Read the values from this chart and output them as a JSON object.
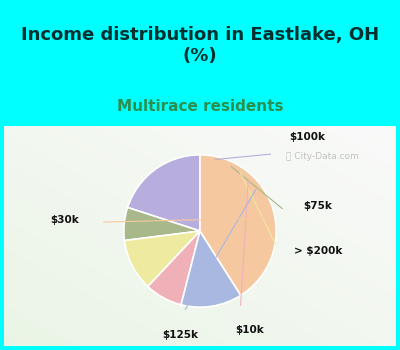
{
  "title": "Income distribution in Eastlake, OH\n(%)",
  "subtitle": "Multirace residents",
  "labels": [
    "$100k",
    "$75k",
    "> $200k",
    "$10k",
    "$125k",
    "$30k"
  ],
  "sizes": [
    20,
    7,
    11,
    8,
    13,
    41
  ],
  "colors": [
    "#b8aedd",
    "#a8b88a",
    "#eeeaa0",
    "#f0b0b8",
    "#a8b8e0",
    "#f5c8a0"
  ],
  "line_colors": [
    "#b8aedd",
    "#a8b88a",
    "#eeeaa0",
    "#f0b0b8",
    "#a8b8e0",
    "#f5c8a0"
  ],
  "bg_color": "#00ffff",
  "title_color": "#003030",
  "subtitle_color": "#2a9050",
  "title_fontsize": 13,
  "subtitle_fontsize": 11,
  "startangle": 90
}
